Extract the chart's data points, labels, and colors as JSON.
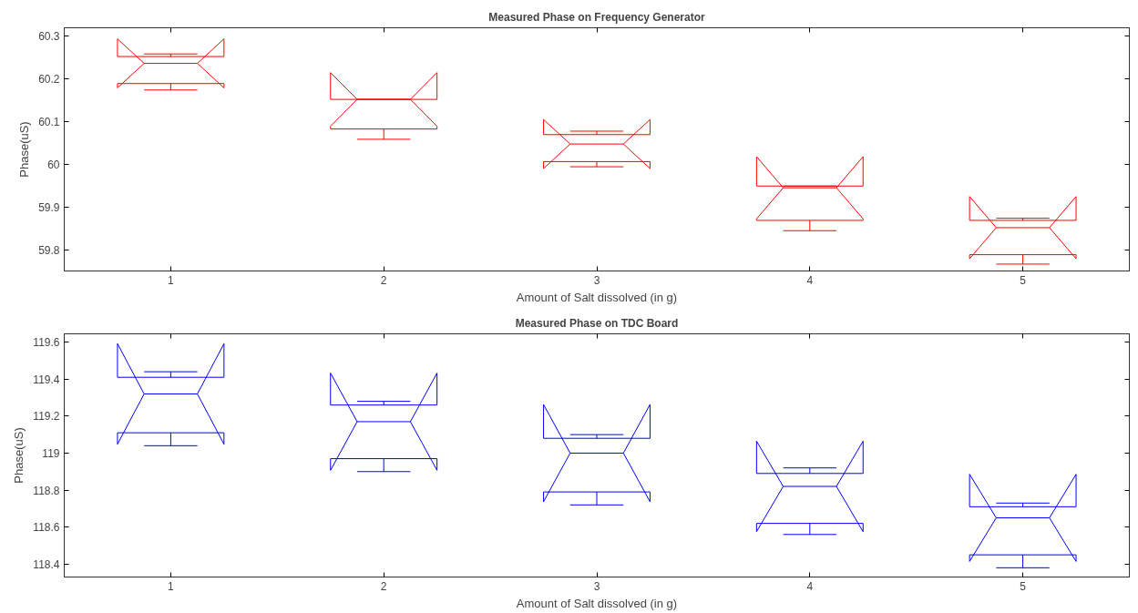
{
  "chart_data": [
    {
      "type": "box",
      "title": "Measured Phase on Frequency Generator",
      "xlabel": "Amount of Salt dissolved (in g)",
      "ylabel": "Phase(uS)",
      "categories": [
        "1",
        "2",
        "3",
        "4",
        "5"
      ],
      "series": [
        {
          "color": "#ff0000",
          "boxes": [
            {
              "low": 60.174,
              "q1": 60.189,
              "median": 60.236,
              "q3": 60.252,
              "high": 60.258
            },
            {
              "low": 60.059,
              "q1": 60.083,
              "median": 60.152,
              "q3": 60.152,
              "high": 60.152
            },
            {
              "low": 59.995,
              "q1": 60.007,
              "median": 60.048,
              "q3": 60.07,
              "high": 60.078
            },
            {
              "low": 59.846,
              "q1": 59.87,
              "median": 59.946,
              "q3": 59.95,
              "high": 59.95
            },
            {
              "low": 59.768,
              "q1": 59.79,
              "median": 59.853,
              "q3": 59.87,
              "high": 59.875
            }
          ]
        }
      ],
      "ylim": [
        59.752,
        60.319
      ],
      "yticks": [
        59.8,
        59.9,
        60,
        60.1,
        60.2,
        60.3
      ]
    },
    {
      "type": "box",
      "title": "Measured Phase on TDC Board",
      "xlabel": "Amount of Salt dissolved (in g)",
      "ylabel": "Phase(uS)",
      "categories": [
        "1",
        "2",
        "3",
        "4",
        "5"
      ],
      "series": [
        {
          "color": "#0000ff",
          "boxes": [
            {
              "low": 119.04,
              "q1": 119.11,
              "median": 119.32,
              "q3": 119.41,
              "high": 119.44
            },
            {
              "low": 118.9,
              "q1": 118.97,
              "median": 119.17,
              "q3": 119.26,
              "high": 119.28
            },
            {
              "low": 118.72,
              "q1": 118.79,
              "median": 119.0,
              "q3": 119.08,
              "high": 119.1
            },
            {
              "low": 118.56,
              "q1": 118.62,
              "median": 118.82,
              "q3": 118.89,
              "high": 118.92
            },
            {
              "low": 118.38,
              "q1": 118.45,
              "median": 118.65,
              "q3": 118.71,
              "high": 118.73
            }
          ]
        }
      ],
      "ylim": [
        118.33,
        119.645
      ],
      "yticks": [
        118.4,
        118.6,
        118.8,
        119,
        119.2,
        119.4,
        119.6
      ]
    }
  ]
}
